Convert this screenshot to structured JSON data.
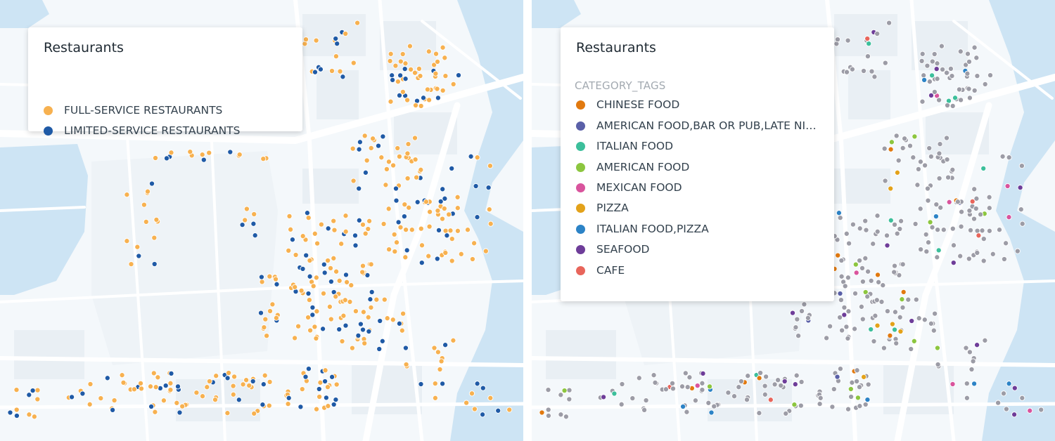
{
  "panels": [
    {
      "legend": {
        "title": "Restaurants",
        "header": "",
        "items": [
          {
            "label": "FULL-SERVICE RESTAURANTS",
            "color": "#f7b150"
          },
          {
            "label": "LIMITED-SERVICE RESTAURANTS",
            "color": "#1f5aa6"
          }
        ]
      }
    },
    {
      "legend": {
        "title": "Restaurants",
        "header": "CATEGORY_TAGS",
        "items": [
          {
            "label": "CHINESE FOOD",
            "color": "#e1790f"
          },
          {
            "label": "AMERICAN FOOD,BAR OR PUB,LATE NIG...",
            "color": "#5a60a8"
          },
          {
            "label": "ITALIAN FOOD",
            "color": "#3cbf9b"
          },
          {
            "label": "AMERICAN FOOD",
            "color": "#8cc63f"
          },
          {
            "label": "MEXICAN FOOD",
            "color": "#d9549d"
          },
          {
            "label": "PIZZA",
            "color": "#e3a21a"
          },
          {
            "label": "ITALIAN FOOD,PIZZA",
            "color": "#2c83c6"
          },
          {
            "label": "SEAFOOD",
            "color": "#6e3d99"
          },
          {
            "label": "CAFE",
            "color": "#e8655b"
          }
        ],
        "other_color": "#9c9ca6"
      }
    }
  ],
  "map_colors": {
    "land": "#f4f8fb",
    "water": "#cde4f4",
    "road": "#ffffff",
    "block": "#e9eff4",
    "park": "#eef3f7"
  }
}
